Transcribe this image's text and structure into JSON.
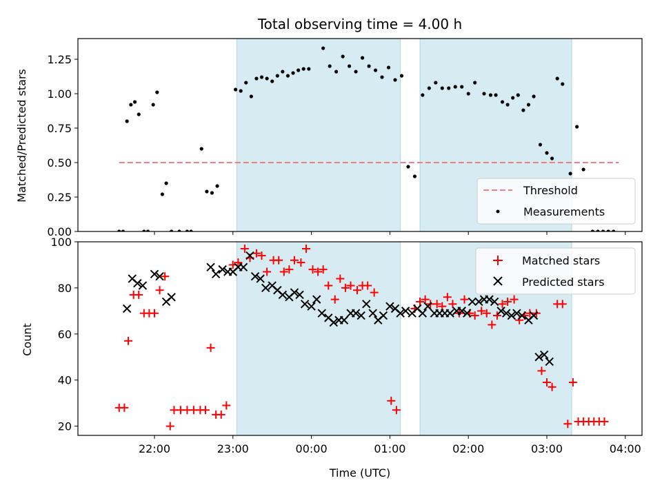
{
  "chart_data": [
    {
      "type": "scatter",
      "title": "Total observing time = 4.00 h",
      "xlabel": "",
      "ylabel": "Matched/Predicted stars",
      "ylim": [
        0,
        1.4
      ],
      "yticks": [
        "0.00",
        "0.25",
        "0.50",
        "0.75",
        "1.00",
        "1.25"
      ],
      "ytick_values": [
        0,
        0.25,
        0.5,
        0.75,
        1.0,
        1.25
      ],
      "shaded_intervals": [
        [
          "23:03",
          "01:08"
        ],
        [
          "01:23",
          "03:19"
        ]
      ],
      "threshold": {
        "name": "Threshold",
        "value": 0.5,
        "x_range": [
          "21:33",
          "03:55"
        ],
        "color": "#f08080"
      },
      "series": [
        {
          "name": "Measurements",
          "color": "#000000",
          "points": [
            [
              "21:33",
              0.0
            ],
            [
              "21:36",
              0.0
            ],
            [
              "21:39",
              0.8
            ],
            [
              "21:42",
              0.92
            ],
            [
              "21:45",
              0.94
            ],
            [
              "21:48",
              0.85
            ],
            [
              "21:52",
              0.0
            ],
            [
              "21:55",
              0.0
            ],
            [
              "21:59",
              0.92
            ],
            [
              "22:02",
              1.01
            ],
            [
              "22:06",
              0.27
            ],
            [
              "22:09",
              0.35
            ],
            [
              "22:13",
              0.0
            ],
            [
              "22:19",
              0.0
            ],
            [
              "22:25",
              0.0
            ],
            [
              "22:28",
              0.0
            ],
            [
              "22:36",
              0.6
            ],
            [
              "22:40",
              0.29
            ],
            [
              "22:44",
              0.28
            ],
            [
              "22:48",
              0.33
            ],
            [
              "23:02",
              1.03
            ],
            [
              "23:06",
              1.02
            ],
            [
              "23:10",
              1.08
            ],
            [
              "23:14",
              0.98
            ],
            [
              "23:18",
              1.11
            ],
            [
              "23:22",
              1.12
            ],
            [
              "23:26",
              1.11
            ],
            [
              "23:30",
              1.09
            ],
            [
              "23:34",
              1.13
            ],
            [
              "23:38",
              1.16
            ],
            [
              "23:42",
              1.13
            ],
            [
              "23:46",
              1.15
            ],
            [
              "23:50",
              1.17
            ],
            [
              "23:54",
              1.18
            ],
            [
              "23:58",
              1.18
            ],
            [
              "00:09",
              1.33
            ],
            [
              "00:14",
              1.2
            ],
            [
              "00:19",
              1.16
            ],
            [
              "00:24",
              1.27
            ],
            [
              "00:29",
              1.2
            ],
            [
              "00:34",
              1.16
            ],
            [
              "00:39",
              1.26
            ],
            [
              "00:44",
              1.2
            ],
            [
              "00:49",
              1.17
            ],
            [
              "00:54",
              1.12
            ],
            [
              "00:59",
              1.19
            ],
            [
              "01:04",
              1.1
            ],
            [
              "01:09",
              1.13
            ],
            [
              "01:14",
              0.47
            ],
            [
              "01:19",
              0.4
            ],
            [
              "01:25",
              0.99
            ],
            [
              "01:30",
              1.04
            ],
            [
              "01:35",
              1.08
            ],
            [
              "01:40",
              1.04
            ],
            [
              "01:45",
              1.04
            ],
            [
              "01:50",
              1.05
            ],
            [
              "01:55",
              1.05
            ],
            [
              "02:00",
              1.0
            ],
            [
              "02:05",
              1.08
            ],
            [
              "02:12",
              1.0
            ],
            [
              "02:17",
              0.99
            ],
            [
              "02:21",
              0.99
            ],
            [
              "02:26",
              0.94
            ],
            [
              "02:30",
              0.92
            ],
            [
              "02:34",
              0.97
            ],
            [
              "02:38",
              0.99
            ],
            [
              "02:42",
              0.88
            ],
            [
              "02:46",
              0.92
            ],
            [
              "02:50",
              0.98
            ],
            [
              "02:55",
              0.63
            ],
            [
              "03:00",
              0.57
            ],
            [
              "03:04",
              0.53
            ],
            [
              "03:08",
              1.11
            ],
            [
              "03:12",
              1.07
            ],
            [
              "03:18",
              0.42
            ],
            [
              "03:23",
              0.76
            ],
            [
              "03:28",
              0.45
            ],
            [
              "03:35",
              0.0
            ],
            [
              "03:39",
              0.0
            ],
            [
              "03:43",
              0.0
            ],
            [
              "03:47",
              0.0
            ],
            [
              "03:51",
              0.0
            ]
          ]
        }
      ],
      "legend_location": "lower right"
    },
    {
      "type": "scatter",
      "title": "",
      "xlabel": "Time (UTC)",
      "ylabel": "Count",
      "ylim": [
        16,
        100
      ],
      "yticks": [
        "20",
        "40",
        "60",
        "80",
        "100"
      ],
      "ytick_values": [
        20,
        40,
        60,
        80,
        100
      ],
      "xticks": [
        "22:00",
        "23:00",
        "00:00",
        "01:00",
        "02:00",
        "03:00",
        "04:00"
      ],
      "shaded_intervals": [
        [
          "23:03",
          "01:08"
        ],
        [
          "01:23",
          "03:19"
        ]
      ],
      "series": [
        {
          "name": "Matched stars",
          "color": "#ff0000",
          "marker": "plus",
          "points": [
            [
              "21:33",
              28
            ],
            [
              "21:37",
              28
            ],
            [
              "21:40",
              57
            ],
            [
              "21:44",
              77
            ],
            [
              "21:48",
              77
            ],
            [
              "21:52",
              69
            ],
            [
              "21:56",
              69
            ],
            [
              "22:00",
              69
            ],
            [
              "22:04",
              79
            ],
            [
              "22:08",
              85
            ],
            [
              "22:12",
              20
            ],
            [
              "22:15",
              27
            ],
            [
              "22:20",
              27
            ],
            [
              "22:25",
              27
            ],
            [
              "22:30",
              27
            ],
            [
              "22:35",
              27
            ],
            [
              "22:39",
              27
            ],
            [
              "22:43",
              54
            ],
            [
              "22:47",
              25
            ],
            [
              "22:51",
              25
            ],
            [
              "22:55",
              29
            ],
            [
              "23:00",
              90
            ],
            [
              "23:04",
              91
            ],
            [
              "23:09",
              97
            ],
            [
              "23:13",
              93
            ],
            [
              "23:18",
              95
            ],
            [
              "23:22",
              94
            ],
            [
              "23:26",
              87
            ],
            [
              "23:31",
              92
            ],
            [
              "23:35",
              92
            ],
            [
              "23:39",
              87
            ],
            [
              "23:43",
              88
            ],
            [
              "23:47",
              92
            ],
            [
              "23:52",
              91
            ],
            [
              "23:56",
              97
            ],
            [
              "00:01",
              88
            ],
            [
              "00:05",
              87
            ],
            [
              "00:09",
              88
            ],
            [
              "00:13",
              81
            ],
            [
              "00:18",
              75
            ],
            [
              "00:22",
              84
            ],
            [
              "00:26",
              80
            ],
            [
              "00:30",
              81
            ],
            [
              "00:35",
              79
            ],
            [
              "00:39",
              81
            ],
            [
              "00:43",
              81
            ],
            [
              "00:48",
              78
            ],
            [
              "01:01",
              31
            ],
            [
              "01:05",
              27
            ],
            [
              "01:19",
              71
            ],
            [
              "01:23",
              74
            ],
            [
              "01:27",
              75
            ],
            [
              "01:31",
              73
            ],
            [
              "01:36",
              73
            ],
            [
              "01:40",
              72
            ],
            [
              "01:44",
              76
            ],
            [
              "01:48",
              73
            ],
            [
              "01:53",
              69
            ],
            [
              "01:57",
              75
            ],
            [
              "02:01",
              69
            ],
            [
              "02:05",
              68
            ],
            [
              "02:10",
              70
            ],
            [
              "02:14",
              69
            ],
            [
              "02:18",
              64
            ],
            [
              "02:22",
              68
            ],
            [
              "02:26",
              73
            ],
            [
              "02:30",
              74
            ],
            [
              "02:35",
              75
            ],
            [
              "02:39",
              66
            ],
            [
              "02:43",
              68
            ],
            [
              "02:47",
              69
            ],
            [
              "02:52",
              69
            ],
            [
              "02:56",
              44
            ],
            [
              "03:00",
              39
            ],
            [
              "03:04",
              37
            ],
            [
              "03:08",
              73
            ],
            [
              "03:12",
              73
            ],
            [
              "03:16",
              21
            ],
            [
              "03:20",
              39
            ],
            [
              "03:24",
              22
            ],
            [
              "03:28",
              22
            ],
            [
              "03:32",
              22
            ],
            [
              "03:36",
              22
            ],
            [
              "03:40",
              22
            ],
            [
              "03:44",
              22
            ]
          ]
        },
        {
          "name": "Predicted stars",
          "color": "#000000",
          "marker": "x",
          "points": [
            [
              "21:39",
              71
            ],
            [
              "21:43",
              84
            ],
            [
              "21:47",
              82
            ],
            [
              "21:51",
              81
            ],
            [
              "22:00",
              86
            ],
            [
              "22:04",
              85
            ],
            [
              "22:09",
              74
            ],
            [
              "22:13",
              76
            ],
            [
              "22:43",
              89
            ],
            [
              "22:47",
              86
            ],
            [
              "22:52",
              88
            ],
            [
              "22:56",
              87
            ],
            [
              "23:00",
              87
            ],
            [
              "23:04",
              89
            ],
            [
              "23:08",
              89
            ],
            [
              "23:13",
              94
            ],
            [
              "23:17",
              85
            ],
            [
              "23:21",
              84
            ],
            [
              "23:25",
              80
            ],
            [
              "23:30",
              81
            ],
            [
              "23:34",
              79
            ],
            [
              "23:38",
              77
            ],
            [
              "23:43",
              76
            ],
            [
              "23:47",
              78
            ],
            [
              "23:51",
              77
            ],
            [
              "23:55",
              73
            ],
            [
              "00:00",
              72
            ],
            [
              "00:04",
              75
            ],
            [
              "00:08",
              69
            ],
            [
              "00:13",
              67
            ],
            [
              "00:17",
              65
            ],
            [
              "00:21",
              66
            ],
            [
              "00:25",
              66
            ],
            [
              "00:30",
              69
            ],
            [
              "00:34",
              69
            ],
            [
              "00:38",
              68
            ],
            [
              "00:42",
              73
            ],
            [
              "00:47",
              69
            ],
            [
              "00:51",
              66
            ],
            [
              "00:55",
              68
            ],
            [
              "01:00",
              72
            ],
            [
              "01:04",
              71
            ],
            [
              "01:08",
              69
            ],
            [
              "01:12",
              70
            ],
            [
              "01:17",
              69
            ],
            [
              "01:21",
              71
            ],
            [
              "01:25",
              69
            ],
            [
              "01:29",
              72
            ],
            [
              "01:34",
              69
            ],
            [
              "01:38",
              69
            ],
            [
              "01:42",
              69
            ],
            [
              "01:46",
              69
            ],
            [
              "01:51",
              70
            ],
            [
              "01:55",
              70
            ],
            [
              "01:59",
              69
            ],
            [
              "02:03",
              74
            ],
            [
              "02:08",
              74
            ],
            [
              "02:12",
              75
            ],
            [
              "02:16",
              75
            ],
            [
              "02:20",
              74
            ],
            [
              "02:25",
              70
            ],
            [
              "02:29",
              69
            ],
            [
              "02:33",
              68
            ],
            [
              "02:37",
              69
            ],
            [
              "02:41",
              68
            ],
            [
              "02:46",
              66
            ],
            [
              "02:50",
              68
            ],
            [
              "02:54",
              50
            ],
            [
              "02:58",
              51
            ],
            [
              "03:02",
              48
            ]
          ]
        }
      ],
      "legend_location": "upper right"
    }
  ]
}
